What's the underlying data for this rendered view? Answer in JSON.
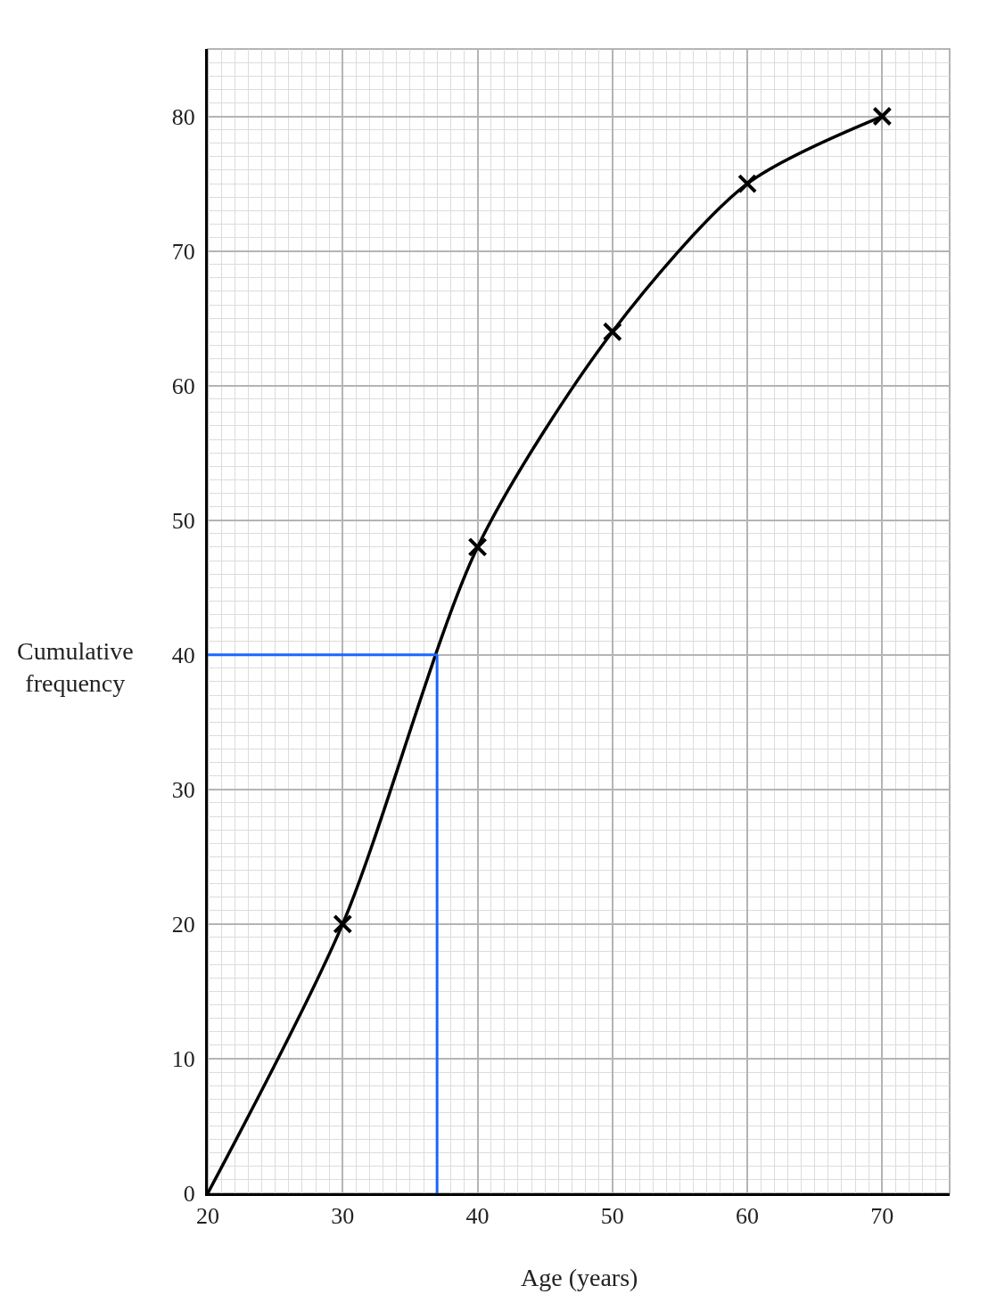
{
  "chart_data": {
    "type": "line",
    "xlabel": "Age (years)",
    "ylabel": "Cumulative frequency",
    "xlim": [
      20,
      75
    ],
    "ylim": [
      0,
      85
    ],
    "xticks": [
      20,
      30,
      40,
      50,
      60,
      70
    ],
    "yticks": [
      0,
      10,
      20,
      30,
      40,
      50,
      60,
      70,
      80
    ],
    "grid": true,
    "series": [
      {
        "color": "#000000",
        "x": [
          20,
          30,
          40,
          50,
          60,
          70
        ],
        "values": [
          0,
          20,
          48,
          64,
          75,
          80
        ],
        "marker": "none",
        "line_style": "solid"
      },
      {
        "type": "scatter",
        "color": "#000000",
        "x": [
          30,
          40,
          50,
          60,
          70
        ],
        "values": [
          20,
          48,
          64,
          75,
          80
        ],
        "marker": "cross"
      }
    ],
    "ref_lines": [
      {
        "axis": "y",
        "value": 40,
        "color": "#1a66ff"
      },
      {
        "axis": "x",
        "value": 37,
        "color": "#1a66ff"
      }
    ]
  }
}
